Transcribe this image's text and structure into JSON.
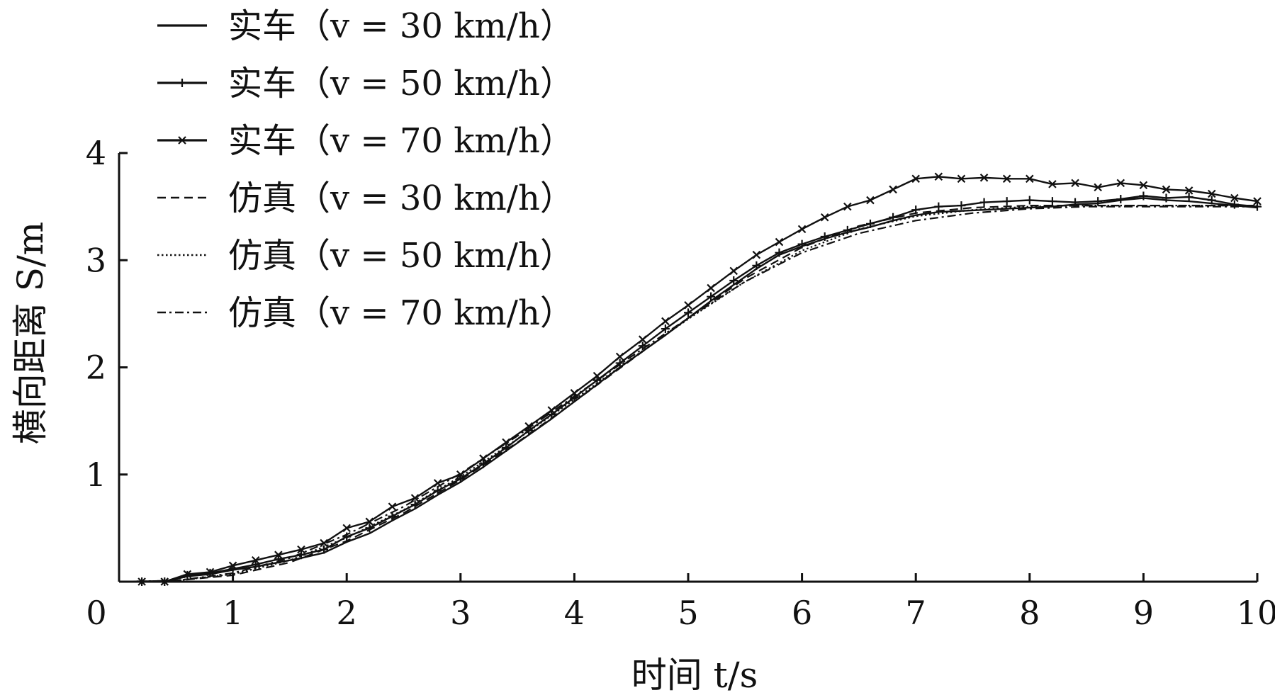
{
  "chart_data": {
    "type": "line",
    "title": "",
    "xlabel": "时间 t/s",
    "ylabel": "横向距离 S/m",
    "xlim": [
      0,
      10
    ],
    "ylim": [
      0,
      4
    ],
    "xticks": [
      "0",
      "1",
      "2",
      "3",
      "4",
      "5",
      "6",
      "7",
      "8",
      "9",
      "10"
    ],
    "yticks": [
      "1",
      "2",
      "3",
      "4"
    ],
    "grid": false,
    "legend_position": "top-left",
    "series": [
      {
        "name": "实车（v = 30 km/h）",
        "line_style": "solid",
        "marker": "none",
        "x": [
          0.2,
          0.4,
          0.6,
          0.8,
          1.0,
          1.2,
          1.4,
          1.6,
          1.8,
          2.0,
          2.2,
          2.4,
          2.6,
          2.8,
          3.0,
          3.2,
          3.4,
          3.6,
          3.8,
          4.0,
          4.2,
          4.4,
          4.6,
          4.8,
          5.0,
          5.2,
          5.4,
          5.6,
          5.8,
          6.0,
          6.2,
          6.4,
          6.6,
          6.8,
          7.0,
          7.2,
          7.4,
          7.6,
          7.8,
          8.0,
          8.2,
          8.4,
          8.6,
          8.8,
          9.0,
          9.2,
          9.4,
          9.6,
          9.8,
          10.0
        ],
        "y": [
          0,
          0,
          0.05,
          0.07,
          0.11,
          0.14,
          0.18,
          0.22,
          0.27,
          0.37,
          0.45,
          0.57,
          0.68,
          0.81,
          0.93,
          1.07,
          1.22,
          1.37,
          1.52,
          1.68,
          1.84,
          2.0,
          2.15,
          2.3,
          2.46,
          2.62,
          2.77,
          2.92,
          3.05,
          3.13,
          3.2,
          3.26,
          3.31,
          3.37,
          3.42,
          3.45,
          3.46,
          3.47,
          3.48,
          3.49,
          3.5,
          3.52,
          3.53,
          3.56,
          3.58,
          3.56,
          3.55,
          3.53,
          3.51,
          3.49
        ]
      },
      {
        "name": "实车（v = 50 km/h）",
        "line_style": "solid",
        "marker": "plus",
        "x": [
          0.2,
          0.4,
          0.6,
          0.8,
          1.0,
          1.2,
          1.4,
          1.6,
          1.8,
          2.0,
          2.2,
          2.4,
          2.6,
          2.8,
          3.0,
          3.2,
          3.4,
          3.6,
          3.8,
          4.0,
          4.2,
          4.4,
          4.6,
          4.8,
          5.0,
          5.2,
          5.4,
          5.6,
          5.8,
          6.0,
          6.2,
          6.4,
          6.6,
          6.8,
          7.0,
          7.2,
          7.4,
          7.6,
          7.8,
          8.0,
          8.2,
          8.4,
          8.6,
          8.8,
          9.0,
          9.2,
          9.4,
          9.6,
          9.8,
          10.0
        ],
        "y": [
          0,
          0,
          0.06,
          0.08,
          0.12,
          0.16,
          0.21,
          0.25,
          0.3,
          0.42,
          0.5,
          0.61,
          0.72,
          0.85,
          0.96,
          1.1,
          1.25,
          1.41,
          1.56,
          1.72,
          1.88,
          2.04,
          2.2,
          2.36,
          2.51,
          2.66,
          2.81,
          2.95,
          3.07,
          3.15,
          3.22,
          3.28,
          3.34,
          3.4,
          3.47,
          3.5,
          3.51,
          3.54,
          3.55,
          3.56,
          3.55,
          3.54,
          3.55,
          3.57,
          3.6,
          3.58,
          3.59,
          3.56,
          3.52,
          3.5
        ]
      },
      {
        "name": "实车（v = 70 km/h）",
        "line_style": "solid",
        "marker": "x",
        "x": [
          0.2,
          0.4,
          0.6,
          0.8,
          1.0,
          1.2,
          1.4,
          1.6,
          1.8,
          2.0,
          2.2,
          2.4,
          2.6,
          2.8,
          3.0,
          3.2,
          3.4,
          3.6,
          3.8,
          4.0,
          4.2,
          4.4,
          4.6,
          4.8,
          5.0,
          5.2,
          5.4,
          5.6,
          5.8,
          6.0,
          6.2,
          6.4,
          6.6,
          6.8,
          7.0,
          7.2,
          7.4,
          7.6,
          7.8,
          8.0,
          8.2,
          8.4,
          8.6,
          8.8,
          9.0,
          9.2,
          9.4,
          9.6,
          9.8,
          10.0
        ],
        "y": [
          0,
          0,
          0.07,
          0.09,
          0.15,
          0.2,
          0.25,
          0.3,
          0.36,
          0.5,
          0.56,
          0.7,
          0.78,
          0.92,
          1.0,
          1.15,
          1.3,
          1.45,
          1.6,
          1.76,
          1.92,
          2.1,
          2.26,
          2.43,
          2.58,
          2.74,
          2.9,
          3.05,
          3.17,
          3.29,
          3.4,
          3.5,
          3.56,
          3.66,
          3.76,
          3.78,
          3.76,
          3.77,
          3.76,
          3.76,
          3.71,
          3.72,
          3.68,
          3.72,
          3.7,
          3.66,
          3.65,
          3.62,
          3.58,
          3.55
        ]
      },
      {
        "name": "仿真（v = 30 km/h）",
        "line_style": "dashed",
        "marker": "none",
        "x": [
          0,
          0.5,
          1.0,
          1.5,
          2.0,
          2.5,
          3.0,
          3.5,
          4.0,
          4.5,
          5.0,
          5.5,
          6.0,
          6.5,
          7.0,
          7.5,
          8.0,
          8.5,
          9.0,
          9.5,
          10.0
        ],
        "y": [
          0,
          0.01,
          0.06,
          0.18,
          0.38,
          0.64,
          0.95,
          1.3,
          1.68,
          2.07,
          2.46,
          2.83,
          3.12,
          3.32,
          3.44,
          3.49,
          3.51,
          3.51,
          3.51,
          3.51,
          3.51
        ]
      },
      {
        "name": "仿真（v = 50 km/h）",
        "line_style": "dotted",
        "marker": "none",
        "x": [
          0,
          0.5,
          1.0,
          1.5,
          2.0,
          2.5,
          3.0,
          3.5,
          4.0,
          4.5,
          5.0,
          5.5,
          6.0,
          6.5,
          7.0,
          7.5,
          8.0,
          8.5,
          9.0,
          9.5,
          10.0
        ],
        "y": [
          0,
          0.01,
          0.07,
          0.2,
          0.41,
          0.67,
          0.98,
          1.33,
          1.7,
          2.08,
          2.45,
          2.8,
          3.09,
          3.29,
          3.41,
          3.47,
          3.5,
          3.51,
          3.51,
          3.51,
          3.51
        ]
      },
      {
        "name": "仿真（v = 70 km/h）",
        "line_style": "dashdot",
        "marker": "none",
        "x": [
          0,
          0.5,
          1.0,
          1.5,
          2.0,
          2.5,
          3.0,
          3.5,
          4.0,
          4.5,
          5.0,
          5.5,
          6.0,
          6.5,
          7.0,
          7.5,
          8.0,
          8.5,
          9.0,
          9.5,
          10.0
        ],
        "y": [
          0,
          0.01,
          0.08,
          0.22,
          0.44,
          0.7,
          1.01,
          1.36,
          1.73,
          2.1,
          2.46,
          2.8,
          3.07,
          3.25,
          3.37,
          3.44,
          3.48,
          3.5,
          3.5,
          3.5,
          3.5
        ]
      }
    ]
  }
}
